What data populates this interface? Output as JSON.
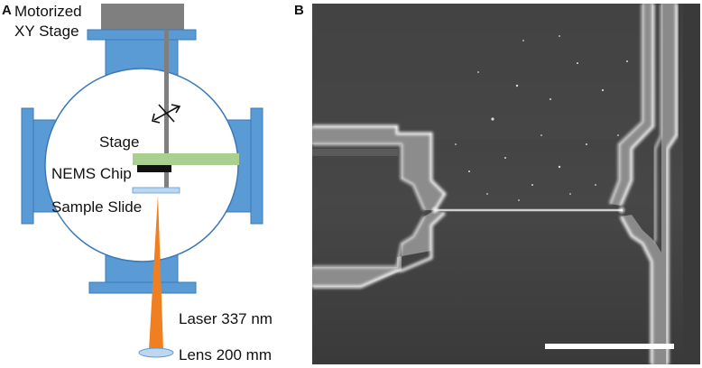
{
  "panels": {
    "a_letter": "A",
    "b_letter": "B"
  },
  "schematic": {
    "stage_label_line1": "Motorized",
    "stage_label_line2": "XY Stage",
    "stage": "Stage",
    "chip": "NEMS Chip",
    "slide": "Sample Slide",
    "laser": "Laser 337 nm",
    "lens": "Lens 200 mm"
  },
  "colors": {
    "chamber_blue": "#5b9bd5",
    "chamber_outline": "#3a78b8",
    "stage_green": "#a9d08e",
    "laser_orange": "#f07f21",
    "chip_black": "#111111",
    "slide_blue": "#bdd7ee",
    "actuator_gray": "#7f7f7f"
  },
  "icons": {
    "xy_motion": "double-arrow-icon"
  },
  "micrograph": {
    "type": "SEM image",
    "scale_bar_color": "#ffffff"
  }
}
